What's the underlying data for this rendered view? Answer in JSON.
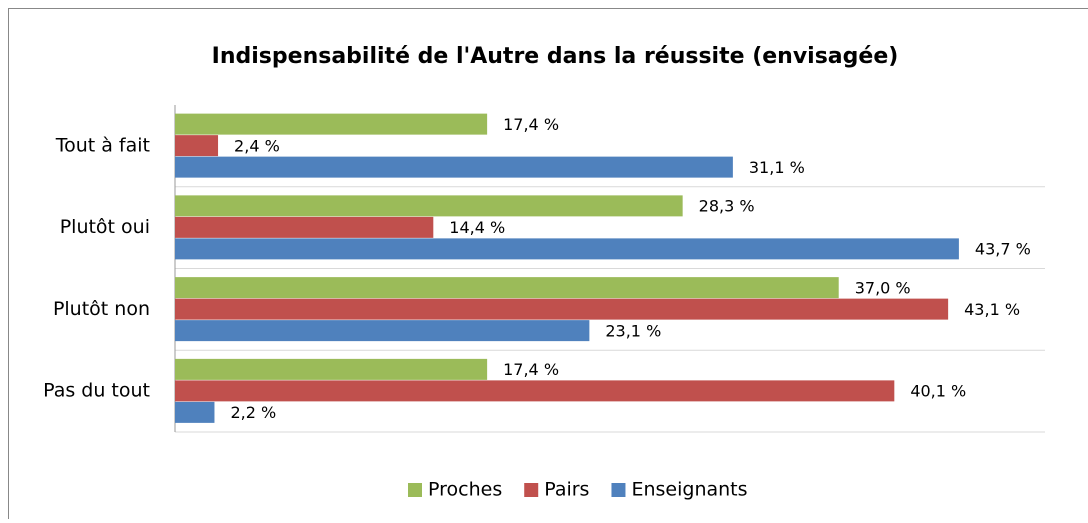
{
  "chart_data": {
    "type": "hbar",
    "title": "Indispensabilité de l'Autre dans la réussite (envisagée)",
    "categories": [
      "Tout à fait",
      "Plutôt oui",
      "Plutôt non",
      "Pas du tout"
    ],
    "series": [
      {
        "name": "Proches",
        "color": "#9bbb59",
        "values": [
          17.4,
          28.3,
          37.0,
          17.4
        ],
        "value_labels": [
          "17,4 %",
          "28,3 %",
          "37,0 %",
          "17,4 %"
        ]
      },
      {
        "name": "Pairs",
        "color": "#c0504d",
        "values": [
          2.4,
          14.4,
          43.1,
          40.1
        ],
        "value_labels": [
          "2,4 %",
          "14,4 %",
          "43,1 %",
          "40,1 %"
        ]
      },
      {
        "name": "Enseignants",
        "color": "#4f81bd",
        "values": [
          31.1,
          43.7,
          23.1,
          2.2
        ],
        "value_labels": [
          "31,1 %",
          "43,7 %",
          "23,1 %",
          "2,2 %"
        ]
      }
    ],
    "xlim": [
      0,
      48.5
    ],
    "legend": "bottom"
  }
}
